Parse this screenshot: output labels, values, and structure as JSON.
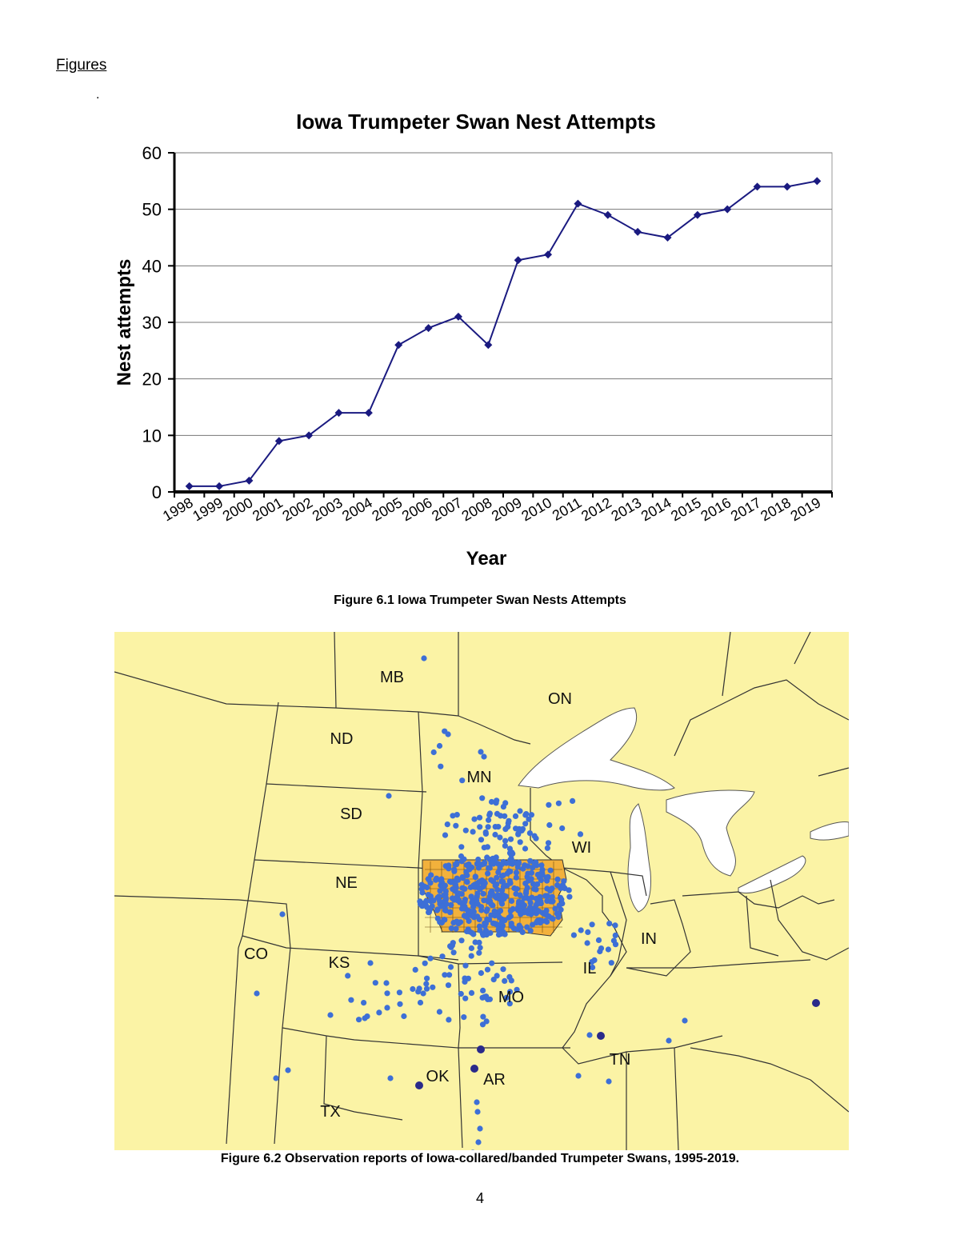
{
  "page": {
    "heading": "Figures",
    "stray_mark": ".",
    "page_number": "4"
  },
  "figure1": {
    "caption": "Figure 6.1 Iowa Trumpeter Swan Nests Attempts"
  },
  "figure2": {
    "caption": "Figure 6.2 Observation reports of Iowa-collared/banded Trumpeter Swans, 1995-2019.",
    "colors": {
      "land": "#fbf3a5",
      "water": "#ffffff",
      "iowa": "#f2b13c",
      "obs": "#3d6fd6",
      "obs_dark": "#2a2a8a"
    },
    "labels": [
      "MB",
      "ON",
      "ND",
      "MN",
      "SD",
      "WI",
      "NE",
      "CO",
      "KS",
      "IN",
      "IL",
      "MO",
      "TN",
      "OK",
      "AR",
      "TX"
    ]
  },
  "chart_data": {
    "type": "line",
    "title": "Iowa Trumpeter Swan Nest Attempts",
    "xlabel": "Year",
    "ylabel": "Nest attempts",
    "categories": [
      "1998",
      "1999",
      "2000",
      "2001",
      "2002",
      "2003",
      "2004",
      "2005",
      "2006",
      "2007",
      "2008",
      "2009",
      "2010",
      "2011",
      "2012",
      "2013",
      "2014",
      "2015",
      "2016",
      "2017",
      "2018",
      "2019"
    ],
    "values": [
      1,
      1,
      2,
      9,
      10,
      14,
      14,
      26,
      29,
      31,
      26,
      41,
      42,
      51,
      49,
      46,
      45,
      49,
      50,
      54,
      54,
      55
    ],
    "ylim": [
      0,
      60
    ],
    "yticks": [
      "0",
      "10",
      "20",
      "30",
      "40",
      "50",
      "60"
    ],
    "grid": true,
    "line_color": "#1a1a80"
  }
}
